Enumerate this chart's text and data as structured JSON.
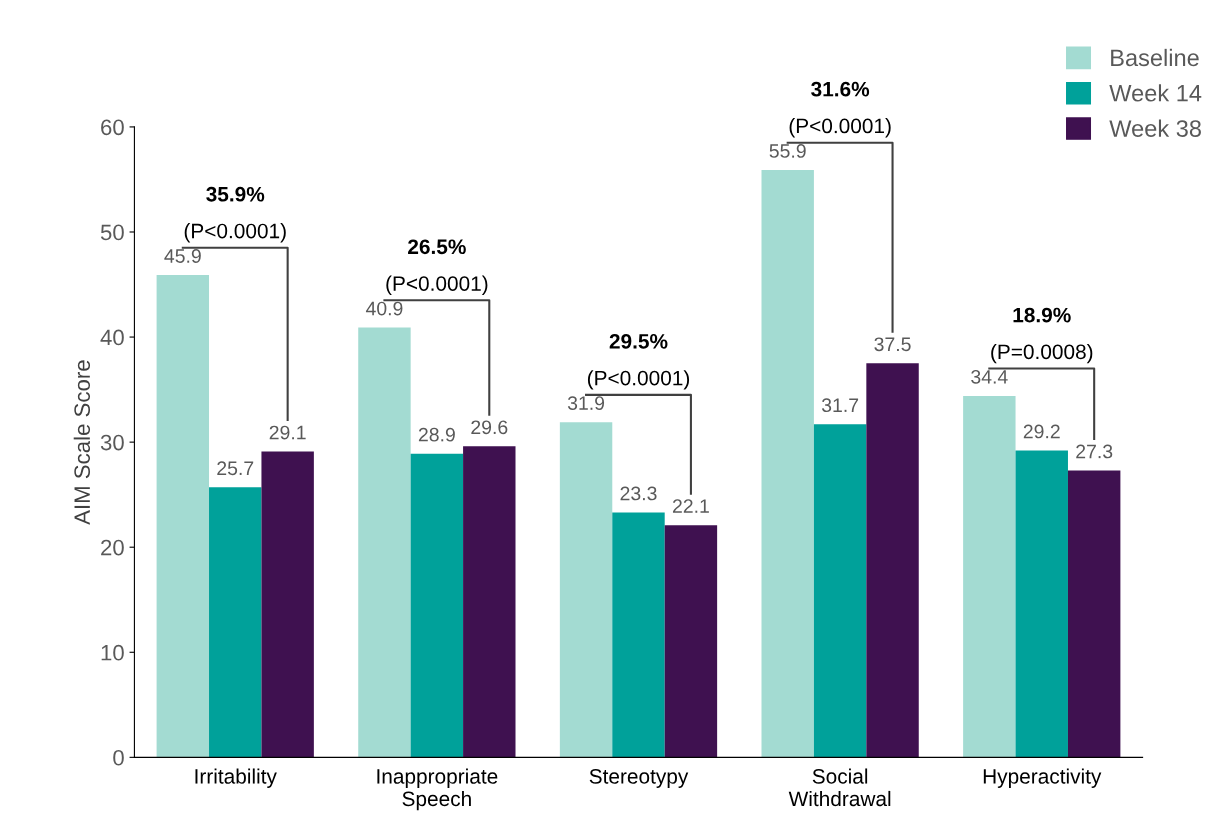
{
  "chart_data": {
    "type": "bar",
    "ylabel": "AIM Scale Score",
    "categories": [
      "Irritability",
      "Inappropriate\nSpeech",
      "Stereotypy",
      "Social\nWithdrawal",
      "Hyperactivity"
    ],
    "series": [
      {
        "name": "Baseline",
        "color": "#a3dbd2",
        "values": [
          45.9,
          40.9,
          31.9,
          55.9,
          34.4
        ]
      },
      {
        "name": "Week 14",
        "color": "#00a19a",
        "values": [
          25.7,
          28.9,
          23.3,
          31.7,
          29.2
        ]
      },
      {
        "name": "Week 38",
        "color": "#3f1150",
        "values": [
          29.1,
          29.6,
          22.1,
          37.5,
          27.3
        ]
      }
    ],
    "ylim": [
      0,
      60
    ],
    "yticks": [
      0,
      10,
      20,
      30,
      40,
      50,
      60
    ],
    "data_labels": true,
    "legend": "top right",
    "grid": false,
    "annotations": [
      "35.9%\n(P<0.0001)",
      "26.5%\n(P<0.0001)",
      "29.5%\n(P<0.0001)",
      "31.6%\n(P<0.0001)",
      "18.9%\n(P=0.0008)"
    ]
  }
}
